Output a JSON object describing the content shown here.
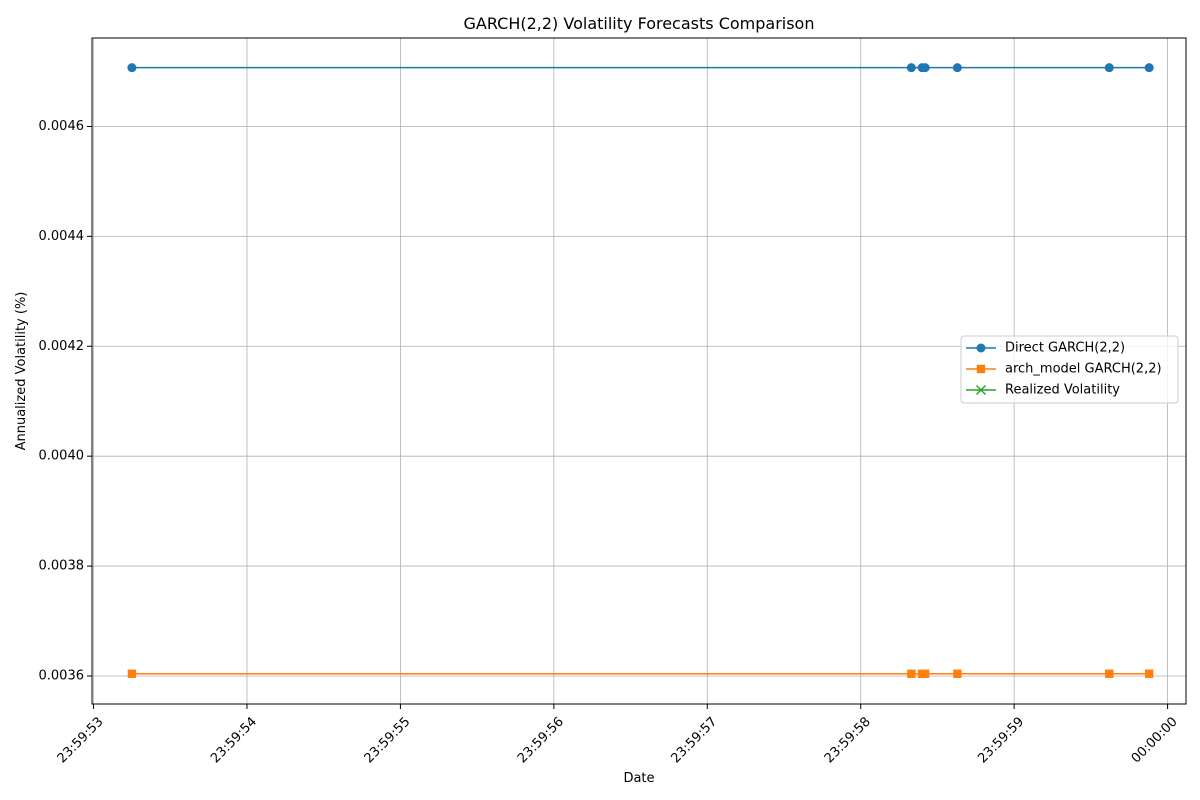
{
  "chart_data": {
    "type": "line",
    "title": "GARCH(2,2) Volatility Forecasts Comparison",
    "xlabel": "Date",
    "ylabel": "Annualized Volatility (%)",
    "x_tick_labels": [
      "23:59:53",
      "23:59:54",
      "23:59:55",
      "23:59:56",
      "23:59:57",
      "23:59:58",
      "23:59:59",
      "00:00:00"
    ],
    "x_ticks_seconds": [
      53,
      54,
      55,
      56,
      57,
      58,
      59,
      60
    ],
    "x_range_seconds": [
      52.99,
      60.12
    ],
    "y_tick_labels": [
      "0.0036",
      "0.0038",
      "0.0040",
      "0.0042",
      "0.0044",
      "0.0046"
    ],
    "y_ticks": [
      0.0036,
      0.0038,
      0.004,
      0.0042,
      0.0044,
      0.0046
    ],
    "ylim": [
      0.003549,
      0.004761
    ],
    "x_seconds": [
      53.25,
      58.33,
      58.4,
      58.42,
      58.63,
      59.62,
      59.88
    ],
    "series": [
      {
        "name": "Direct GARCH(2,2)",
        "color": "#1f77b4",
        "marker": "circle",
        "values": [
          0.004707,
          0.004707,
          0.004707,
          0.004707,
          0.004707,
          0.004707,
          0.004707
        ]
      },
      {
        "name": "arch_model GARCH(2,2)",
        "color": "#ff7f0e",
        "marker": "square",
        "values": [
          0.003604,
          0.003604,
          0.003604,
          0.003604,
          0.003604,
          0.003604,
          0.003604
        ]
      },
      {
        "name": "Realized Volatility",
        "color": "#2ca02c",
        "marker": "x",
        "values": []
      }
    ],
    "grid": true,
    "legend_position": "center-right"
  }
}
